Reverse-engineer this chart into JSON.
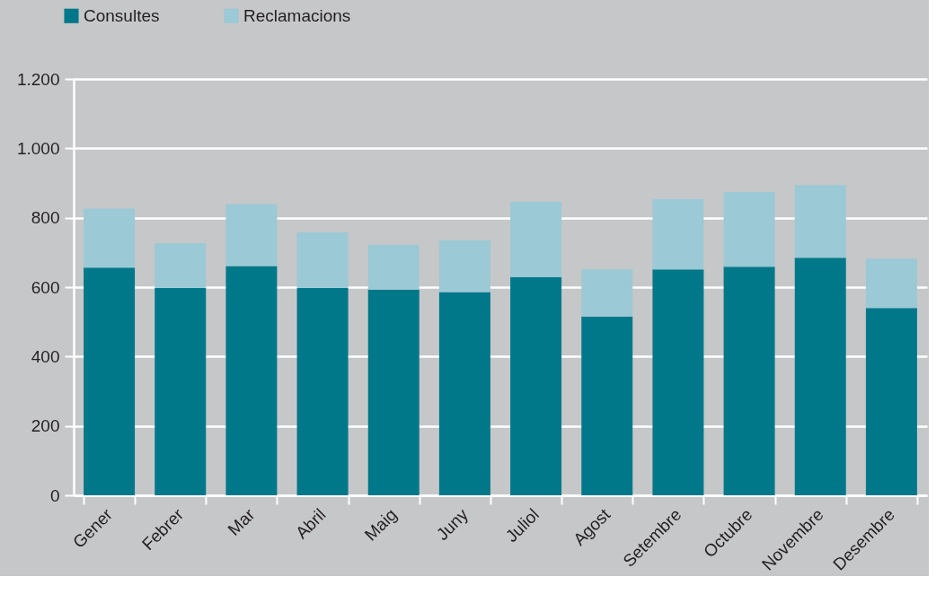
{
  "chart_data": {
    "type": "bar",
    "stacked": true,
    "categories": [
      "Gener",
      "Febrer",
      "Mar",
      "Abril",
      "Maig",
      "Juny",
      "Juliol",
      "Agost",
      "Setembre",
      "Octubre",
      "Novembre",
      "Desembre"
    ],
    "series": [
      {
        "name": "Consultes",
        "color": "#00788a",
        "values": [
          656,
          598,
          661,
          598,
          593,
          586,
          629,
          515,
          651,
          659,
          685,
          540
        ]
      },
      {
        "name": "Reclamacions",
        "color": "#9bc9d5",
        "values": [
          170,
          129,
          178,
          160,
          129,
          149,
          217,
          136,
          203,
          215,
          209,
          142
        ]
      }
    ],
    "ylim": [
      0,
      1200
    ],
    "yticks": [
      0,
      200,
      400,
      600,
      800,
      {
        "value": 1000,
        "label": "1.000"
      },
      {
        "value": 1200,
        "label": "1.200"
      }
    ],
    "grid": "y",
    "legend": "top left"
  }
}
